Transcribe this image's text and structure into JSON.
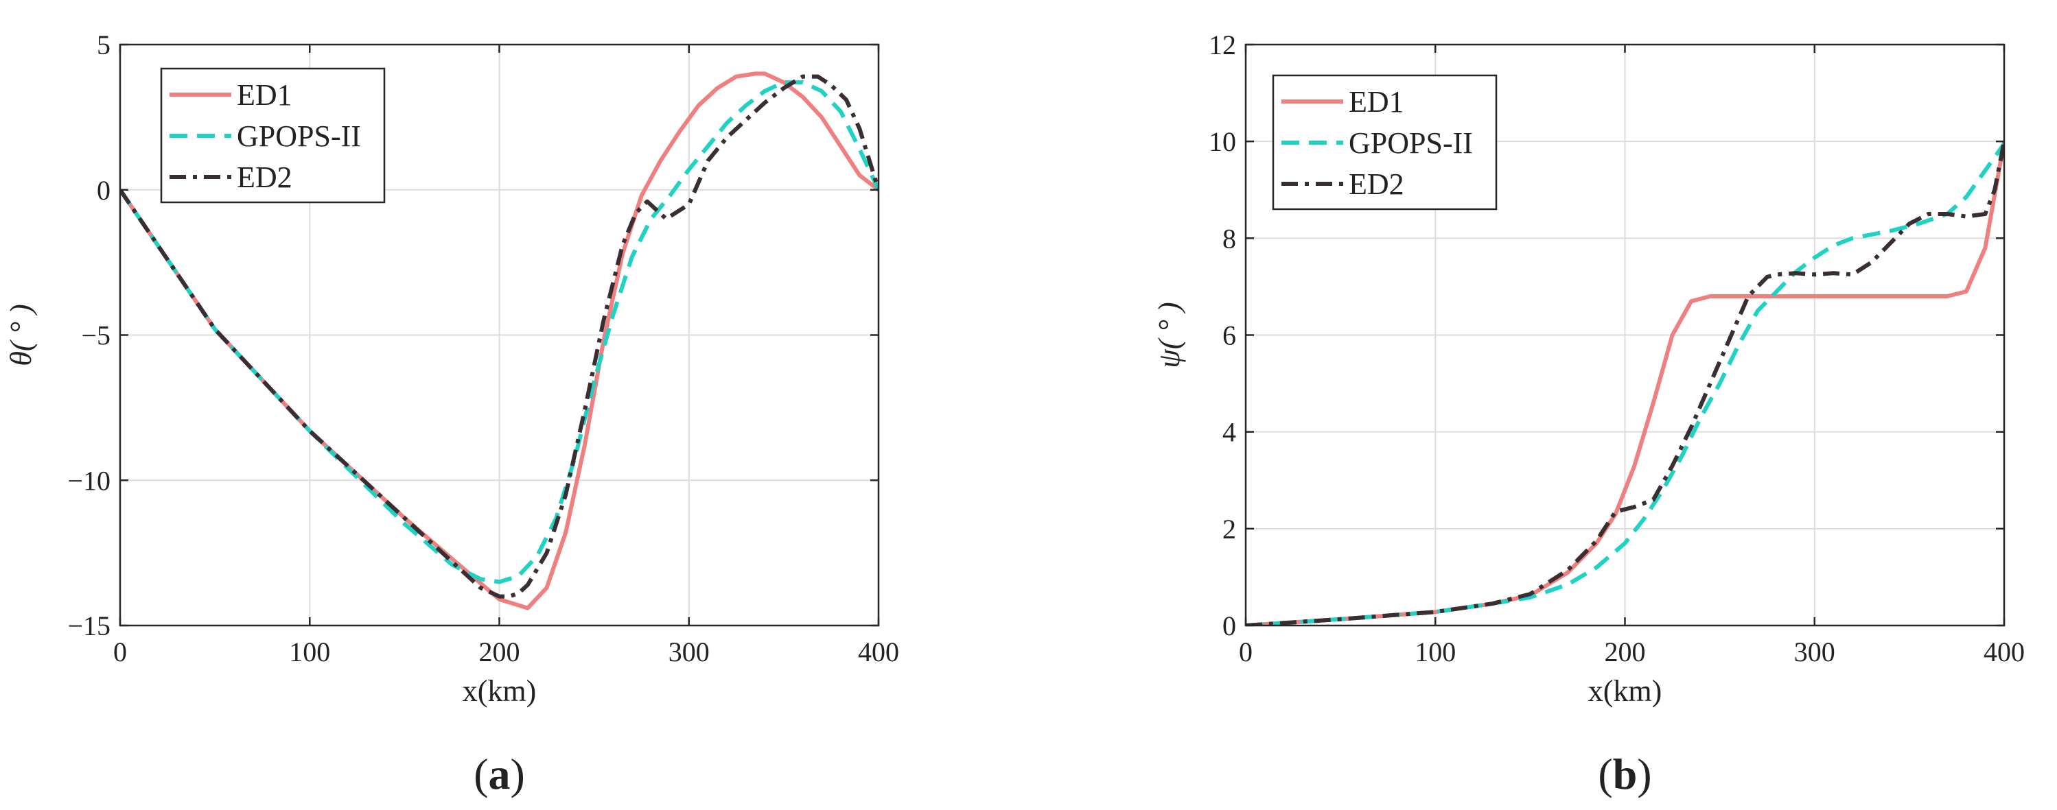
{
  "chart_data": [
    {
      "type": "line",
      "panel_label_paren_open": "(",
      "panel_label_letter": "a",
      "panel_label_paren_close": ")",
      "xlabel": "x(km)",
      "ylabel": "θ( ° )",
      "xlim": [
        0,
        400
      ],
      "ylim": [
        -15,
        5
      ],
      "xticks": [
        0,
        100,
        200,
        300,
        400
      ],
      "xtick_labels": [
        "0",
        "100",
        "200",
        "300",
        "400"
      ],
      "yticks": [
        -15,
        -10,
        -5,
        0,
        5
      ],
      "ytick_labels": [
        "−15",
        "−10",
        "−5",
        "0",
        "5"
      ],
      "grid": true,
      "legend_position": "top-left",
      "series": [
        {
          "name": "ED1",
          "color": "#f08080",
          "style": "solid",
          "x": [
            0,
            50,
            100,
            150,
            200,
            215,
            225,
            235,
            245,
            255,
            265,
            275,
            285,
            295,
            305,
            315,
            325,
            335,
            340,
            350,
            360,
            370,
            380,
            390,
            400
          ],
          "y": [
            0,
            -4.8,
            -8.3,
            -11.3,
            -14.1,
            -14.4,
            -13.7,
            -11.8,
            -8.8,
            -5.2,
            -2.2,
            -0.2,
            1,
            2,
            2.9,
            3.5,
            3.9,
            4.0,
            4.0,
            3.7,
            3.2,
            2.5,
            1.5,
            0.5,
            0
          ]
        },
        {
          "name": "GPOPS-II",
          "color": "#20d2c3",
          "style": "dashed",
          "x": [
            0,
            50,
            100,
            150,
            175,
            190,
            200,
            210,
            220,
            230,
            240,
            250,
            260,
            270,
            280,
            290,
            300,
            310,
            320,
            330,
            340,
            350,
            360,
            370,
            380,
            390,
            400
          ],
          "y": [
            0,
            -4.8,
            -8.3,
            -11.5,
            -12.9,
            -13.4,
            -13.5,
            -13.3,
            -12.6,
            -11.3,
            -9.2,
            -6.6,
            -4.3,
            -2.3,
            -1.0,
            -0.2,
            0.7,
            1.5,
            2.3,
            2.9,
            3.4,
            3.7,
            3.7,
            3.4,
            2.7,
            1.4,
            0
          ]
        },
        {
          "name": "ED2",
          "color": "#3a2e33",
          "style": "dashdot",
          "x": [
            0,
            50,
            100,
            150,
            175,
            190,
            200,
            205,
            210,
            215,
            225,
            235,
            245,
            255,
            265,
            272,
            278,
            288,
            300,
            310,
            320,
            330,
            340,
            350,
            360,
            368,
            375,
            383,
            390,
            400
          ],
          "y": [
            0,
            -4.8,
            -8.3,
            -11.3,
            -12.8,
            -13.7,
            -14.0,
            -14.0,
            -13.9,
            -13.6,
            -12.5,
            -10.5,
            -7.6,
            -4.5,
            -1.9,
            -0.8,
            -0.4,
            -1.0,
            -0.5,
            1.0,
            1.8,
            2.4,
            3.0,
            3.5,
            3.9,
            3.9,
            3.6,
            3.1,
            2.1,
            0
          ]
        }
      ]
    },
    {
      "type": "line",
      "panel_label_paren_open": "(",
      "panel_label_letter": "b",
      "panel_label_paren_close": ")",
      "xlabel": "x(km)",
      "ylabel": "ψ( ° )",
      "xlim": [
        0,
        400
      ],
      "ylim": [
        0,
        12
      ],
      "xticks": [
        0,
        100,
        200,
        300,
        400
      ],
      "xtick_labels": [
        "0",
        "100",
        "200",
        "300",
        "400"
      ],
      "yticks": [
        0,
        2,
        4,
        6,
        8,
        10,
        12
      ],
      "ytick_labels": [
        "0",
        "2",
        "4",
        "6",
        "8",
        "10",
        "12"
      ],
      "grid": true,
      "legend_position": "top-left",
      "series": [
        {
          "name": "ED1",
          "color": "#f08080",
          "style": "solid",
          "x": [
            0,
            50,
            100,
            130,
            150,
            170,
            185,
            195,
            205,
            215,
            225,
            235,
            245,
            260,
            300,
            350,
            370,
            380,
            390,
            400
          ],
          "y": [
            0,
            0.13,
            0.28,
            0.45,
            0.62,
            1.1,
            1.7,
            2.3,
            3.3,
            4.6,
            6.0,
            6.7,
            6.8,
            6.8,
            6.8,
            6.8,
            6.8,
            6.9,
            7.8,
            10.0
          ]
        },
        {
          "name": "GPOPS-II",
          "color": "#20d2c3",
          "style": "dashed",
          "x": [
            0,
            50,
            100,
            130,
            150,
            170,
            185,
            200,
            210,
            220,
            230,
            240,
            250,
            260,
            270,
            280,
            290,
            300,
            310,
            320,
            340,
            355,
            370,
            380,
            390,
            400
          ],
          "y": [
            0,
            0.13,
            0.28,
            0.45,
            0.58,
            0.85,
            1.2,
            1.7,
            2.2,
            2.8,
            3.5,
            4.3,
            5.0,
            5.8,
            6.5,
            6.9,
            7.3,
            7.6,
            7.85,
            8.0,
            8.15,
            8.3,
            8.5,
            8.85,
            9.4,
            9.95
          ]
        },
        {
          "name": "ED2",
          "color": "#3a2e33",
          "style": "dashdot",
          "x": [
            0,
            50,
            100,
            130,
            150,
            170,
            185,
            195,
            205,
            215,
            225,
            235,
            245,
            255,
            265,
            275,
            280,
            290,
            300,
            310,
            320,
            330,
            340,
            350,
            360,
            370,
            380,
            390,
            395,
            400
          ],
          "y": [
            0,
            0.13,
            0.28,
            0.45,
            0.65,
            1.15,
            1.75,
            2.35,
            2.45,
            2.6,
            3.3,
            4.1,
            5.0,
            5.9,
            6.8,
            7.2,
            7.25,
            7.28,
            7.25,
            7.28,
            7.25,
            7.5,
            7.9,
            8.3,
            8.5,
            8.5,
            8.45,
            8.5,
            9.0,
            10.0
          ]
        }
      ]
    }
  ]
}
